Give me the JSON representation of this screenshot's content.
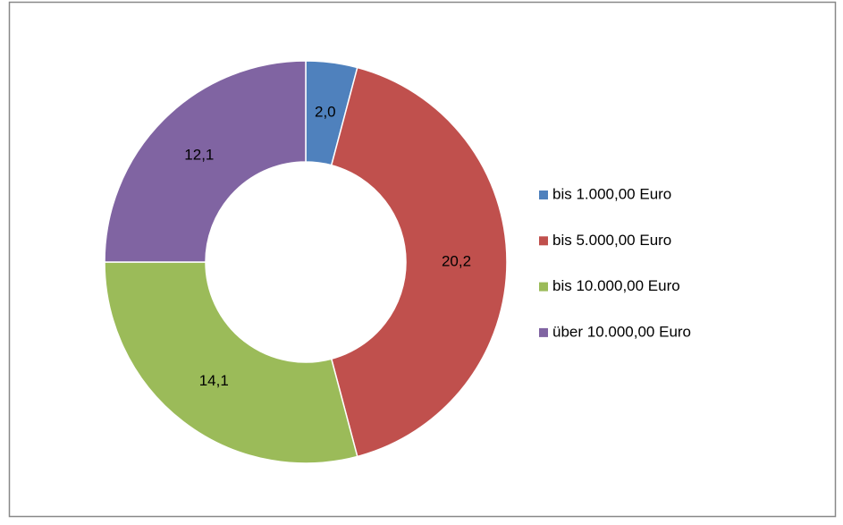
{
  "chart_data": {
    "type": "donut",
    "categories": [
      "bis 1.000,00 Euro",
      "bis 5.000,00 Euro",
      "bis 10.000,00 Euro",
      "über 10.000,00 Euro"
    ],
    "values": [
      2.0,
      20.2,
      14.1,
      12.1
    ],
    "value_labels": [
      "2,0",
      "20,2",
      "14,1",
      "12,1"
    ],
    "colors": [
      "#4f81bd",
      "#c0504d",
      "#9bbb59",
      "#8064a2"
    ],
    "legend": "right"
  }
}
